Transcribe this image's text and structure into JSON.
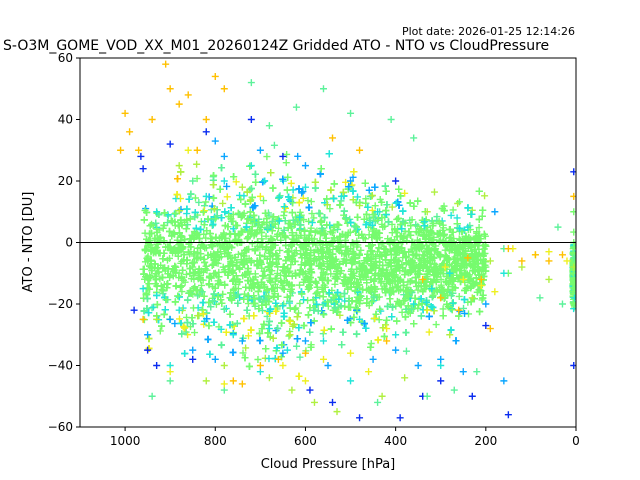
{
  "plot_date": "Plot date: 2026-01-25 12:14:26",
  "chart_data": {
    "type": "scatter",
    "title": "S-O3M_GOME_VOD_XX_M01_20260124Z Gridded ATO - NTO vs CloudPressure",
    "xlabel": "Cloud Pressure [hPa]",
    "ylabel": "ATO - NTO [DU]",
    "xlim": [
      1100,
      0
    ],
    "ylim": [
      -60,
      60
    ],
    "x_inverted": true,
    "xticks": [
      1000,
      800,
      600,
      400,
      200,
      0
    ],
    "yticks": [
      -60,
      -40,
      -20,
      0,
      20,
      40,
      60
    ],
    "hline_y": 0,
    "marker": "+",
    "grid": false,
    "colors": [
      "#0a2cf0",
      "#0aa6ff",
      "#22e6d8",
      "#5cf29a",
      "#76fb6e",
      "#b0f040",
      "#eef020",
      "#ffc000"
    ],
    "series": [
      {
        "color": "#76fb6e",
        "points": [
          [
            950,
            -5
          ],
          [
            900,
            0
          ],
          [
            850,
            -8
          ],
          [
            800,
            -10
          ],
          [
            750,
            -12
          ],
          [
            700,
            -6
          ],
          [
            650,
            -14
          ],
          [
            600,
            -10
          ],
          [
            550,
            -8
          ],
          [
            500,
            -6
          ],
          [
            450,
            -4
          ],
          [
            400,
            -2
          ],
          [
            350,
            0
          ],
          [
            300,
            -4
          ],
          [
            250,
            -6
          ],
          [
            200,
            -8
          ],
          [
            150,
            -10
          ],
          [
            5,
            -10
          ],
          [
            5,
            0
          ],
          [
            5,
            -20
          ],
          [
            5,
            10
          ]
        ]
      },
      {
        "color": "#22e6d8",
        "points": [
          [
            960,
            -15
          ],
          [
            930,
            10
          ],
          [
            880,
            -22
          ],
          [
            820,
            15
          ],
          [
            780,
            20
          ],
          [
            760,
            -30
          ],
          [
            720,
            25
          ],
          [
            680,
            -28
          ],
          [
            640,
            -35
          ],
          [
            600,
            18
          ],
          [
            560,
            -32
          ],
          [
            520,
            15
          ],
          [
            480,
            -25
          ],
          [
            440,
            10
          ],
          [
            400,
            -30
          ],
          [
            360,
            -20
          ],
          [
            320,
            -15
          ],
          [
            280,
            -10
          ],
          [
            240,
            5
          ],
          [
            160,
            -10
          ],
          [
            900,
            -40
          ],
          [
            700,
            -42
          ],
          [
            500,
            -45
          ],
          [
            300,
            -40
          ]
        ]
      },
      {
        "color": "#0aa6ff",
        "points": [
          [
            950,
            -30
          ],
          [
            900,
            -25
          ],
          [
            850,
            -35
          ],
          [
            800,
            -38
          ],
          [
            780,
            28
          ],
          [
            740,
            -32
          ],
          [
            700,
            30
          ],
          [
            650,
            -36
          ],
          [
            600,
            -32
          ],
          [
            550,
            -40
          ],
          [
            500,
            20
          ],
          [
            450,
            -38
          ],
          [
            400,
            -35
          ],
          [
            350,
            -40
          ],
          [
            300,
            -38
          ],
          [
            250,
            -42
          ],
          [
            200,
            -20
          ],
          [
            180,
            10
          ],
          [
            160,
            -45
          ],
          [
            800,
            33
          ],
          [
            600,
            25
          ]
        ]
      },
      {
        "color": "#0a2cf0",
        "points": [
          [
            980,
            -22
          ],
          [
            965,
            28
          ],
          [
            960,
            24
          ],
          [
            950,
            -35
          ],
          [
            930,
            -40
          ],
          [
            900,
            32
          ],
          [
            850,
            -38
          ],
          [
            820,
            36
          ],
          [
            720,
            40
          ],
          [
            650,
            28
          ],
          [
            590,
            -48
          ],
          [
            540,
            -52
          ],
          [
            480,
            -57
          ],
          [
            400,
            20
          ],
          [
            390,
            -57
          ],
          [
            340,
            -50
          ],
          [
            300,
            -45
          ],
          [
            230,
            -50
          ],
          [
            200,
            -27
          ],
          [
            150,
            -56
          ],
          [
            5,
            23
          ],
          [
            5,
            -40
          ]
        ]
      },
      {
        "color": "#5cf29a",
        "points": [
          [
            940,
            -50
          ],
          [
            900,
            -45
          ],
          [
            850,
            20
          ],
          [
            780,
            -48
          ],
          [
            720,
            52
          ],
          [
            680,
            38
          ],
          [
            620,
            44
          ],
          [
            560,
            50
          ],
          [
            500,
            42
          ],
          [
            440,
            -52
          ],
          [
            410,
            40
          ],
          [
            360,
            34
          ],
          [
            330,
            -50
          ],
          [
            270,
            -48
          ],
          [
            220,
            -42
          ],
          [
            160,
            -2
          ],
          [
            80,
            -18
          ],
          [
            40,
            5
          ],
          [
            30,
            -20
          ],
          [
            5,
            -5
          ]
        ]
      },
      {
        "color": "#b0f040",
        "points": [
          [
            930,
            -25
          ],
          [
            880,
            25
          ],
          [
            820,
            -45
          ],
          [
            780,
            -40
          ],
          [
            740,
            18
          ],
          [
            680,
            -44
          ],
          [
            630,
            -48
          ],
          [
            580,
            -52
          ],
          [
            530,
            -55
          ],
          [
            480,
            12
          ],
          [
            430,
            -50
          ],
          [
            380,
            -44
          ],
          [
            330,
            10
          ],
          [
            280,
            -30
          ],
          [
            230,
            -18
          ],
          [
            190,
            -6
          ],
          [
            120,
            -8
          ],
          [
            60,
            -12
          ],
          [
            5,
            -8
          ]
        ]
      },
      {
        "color": "#eef020",
        "points": [
          [
            900,
            -42
          ],
          [
            860,
            30
          ],
          [
            780,
            -46
          ],
          [
            700,
            15
          ],
          [
            650,
            -40
          ],
          [
            600,
            -45
          ],
          [
            560,
            -38
          ],
          [
            500,
            -36
          ],
          [
            460,
            -42
          ],
          [
            420,
            -28
          ],
          [
            380,
            16
          ],
          [
            330,
            -22
          ],
          [
            290,
            -8
          ],
          [
            250,
            -12
          ],
          [
            210,
            -14
          ],
          [
            180,
            -16
          ],
          [
            140,
            -2
          ],
          [
            90,
            -4
          ],
          [
            60,
            -3
          ],
          [
            20,
            -6
          ]
        ]
      },
      {
        "color": "#ffc000",
        "points": [
          [
            1010,
            30
          ],
          [
            1000,
            42
          ],
          [
            990,
            36
          ],
          [
            970,
            30
          ],
          [
            960,
            -25
          ],
          [
            940,
            40
          ],
          [
            910,
            58
          ],
          [
            900,
            50
          ],
          [
            880,
            45
          ],
          [
            860,
            48
          ],
          [
            840,
            30
          ],
          [
            820,
            40
          ],
          [
            800,
            54
          ],
          [
            780,
            50
          ],
          [
            760,
            -45
          ],
          [
            740,
            -46
          ],
          [
            700,
            -40
          ],
          [
            660,
            -38
          ],
          [
            600,
            -36
          ],
          [
            540,
            34
          ],
          [
            480,
            30
          ],
          [
            420,
            -32
          ],
          [
            340,
            -12
          ],
          [
            300,
            -18
          ],
          [
            260,
            -22
          ],
          [
            240,
            -5
          ],
          [
            210,
            -12
          ],
          [
            190,
            -28
          ],
          [
            150,
            -2
          ],
          [
            120,
            -6
          ],
          [
            90,
            -4
          ],
          [
            60,
            -6
          ],
          [
            30,
            -4
          ],
          [
            5,
            15
          ]
        ]
      }
    ]
  }
}
